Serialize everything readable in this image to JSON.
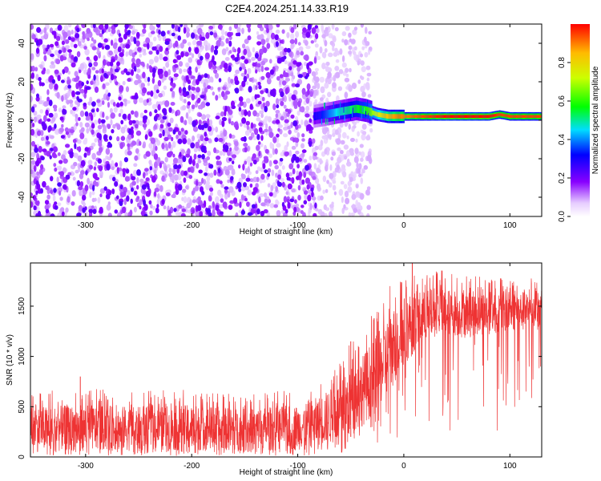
{
  "figure_title": "C2E4.2024.251.14.33.R19",
  "chart_data": [
    {
      "type": "heatmap",
      "xlabel": "Height of straight line (km)",
      "ylabel": "Frequency (Hz)",
      "xlim": [
        -352,
        130
      ],
      "ylim": [
        -50,
        50
      ],
      "xticks": [
        -300,
        -200,
        -100,
        0,
        100
      ],
      "yticks": [
        -40,
        -20,
        0,
        20,
        40
      ],
      "colorbar": {
        "label": "Normalized spectral amplitude",
        "range": [
          0,
          1
        ],
        "ticks": [
          "0.0",
          "0.2",
          "0.4",
          "0.6",
          "0.8"
        ],
        "colormap": "rainbow (violet → blue → cyan → green → yellow → red)"
      },
      "description_regions": [
        {
          "x_range": [
            -352,
            -85
          ],
          "pattern": "broadband scattered noise across all frequencies, amplitude mostly 0.0–0.2"
        },
        {
          "x_range": [
            -85,
            -30
          ],
          "pattern": "transition; sparse noise plus a band near 0–10 Hz with amplitude 0.2–0.6"
        },
        {
          "x_range": [
            -30,
            130
          ],
          "pattern": "narrow band centered near 2 Hz, amplitude 0.8–1.0"
        }
      ],
      "ridge": {
        "x": [
          -85,
          -75,
          -65,
          -55,
          -45,
          -35,
          -25,
          -15,
          -5,
          0,
          20,
          40,
          60,
          80,
          90,
          100,
          130
        ],
        "y": [
          2,
          3,
          4,
          5,
          6,
          5,
          3,
          2,
          2,
          2,
          2,
          2,
          2,
          2,
          3,
          2,
          2
        ],
        "amplitude": [
          0.3,
          0.35,
          0.45,
          0.5,
          0.55,
          0.6,
          0.75,
          0.85,
          0.9,
          0.9,
          0.95,
          1.0,
          1.0,
          1.0,
          0.95,
          0.95,
          0.95
        ]
      }
    },
    {
      "type": "line",
      "xlabel": "Height of straight line (km)",
      "ylabel": "SNR (10 * v/v)",
      "xlim": [
        -352,
        130
      ],
      "ylim": [
        0,
        1930
      ],
      "xticks": [
        -300,
        -200,
        -100,
        0,
        100
      ],
      "yticks": [
        0,
        500,
        1000,
        1500
      ],
      "color": "#ee3333",
      "envelope": {
        "x": [
          -352,
          -300,
          -250,
          -200,
          -150,
          -100,
          -80,
          -60,
          -50,
          -40,
          -30,
          -20,
          -10,
          0,
          10,
          20,
          30,
          40,
          60,
          80,
          100,
          130
        ],
        "low": [
          50,
          60,
          60,
          60,
          60,
          70,
          100,
          150,
          200,
          300,
          400,
          550,
          700,
          900,
          1050,
          1150,
          1200,
          1200,
          1200,
          1220,
          1250,
          1250
        ],
        "high": [
          500,
          520,
          500,
          520,
          480,
          520,
          600,
          750,
          900,
          1000,
          1150,
          1300,
          1500,
          1600,
          1650,
          1650,
          1700,
          1680,
          1650,
          1650,
          1650,
          1650
        ]
      },
      "spikes": [
        {
          "x": -305,
          "y": 800
        },
        {
          "x": -50,
          "y": 1150
        },
        {
          "x": -28,
          "y": 1380
        },
        {
          "x": 8,
          "y": 1930
        }
      ]
    }
  ]
}
